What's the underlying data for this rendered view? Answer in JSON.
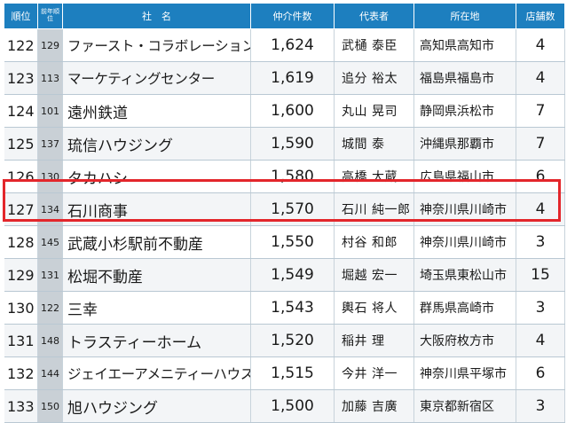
{
  "table": {
    "headers": {
      "rank": "順位",
      "prev_rank": "前年順位",
      "company": "社　名",
      "deals": "仲介件数",
      "representative": "代表者",
      "location": "所在地",
      "stores": "店舗数"
    },
    "rows": [
      {
        "rank": "122",
        "prev": "129",
        "company": "ファースト・コラボレーション",
        "deals": "1,624",
        "rep": "武樋 泰臣",
        "loc": "高知県高知市",
        "stores": "4"
      },
      {
        "rank": "123",
        "prev": "113",
        "company": "マーケティングセンター",
        "deals": "1,619",
        "rep": "追分 裕太",
        "loc": "福島県福島市",
        "stores": "4"
      },
      {
        "rank": "124",
        "prev": "101",
        "company": "遠州鉄道",
        "deals": "1,600",
        "rep": "丸山 晃司",
        "loc": "静岡県浜松市",
        "stores": "7"
      },
      {
        "rank": "125",
        "prev": "137",
        "company": "琉信ハウジング",
        "deals": "1,590",
        "rep": "城間 泰",
        "loc": "沖縄県那覇市",
        "stores": "7"
      },
      {
        "rank": "126",
        "prev": "130",
        "company": "タカハシ",
        "deals": "1,580",
        "rep": "高橋 大蔵",
        "loc": "広島県福山市",
        "stores": "6"
      },
      {
        "rank": "127",
        "prev": "134",
        "company": "石川商事",
        "deals": "1,570",
        "rep": "石川 純一郎",
        "loc": "神奈川県川崎市",
        "stores": "4"
      },
      {
        "rank": "128",
        "prev": "145",
        "company": "武蔵小杉駅前不動産",
        "deals": "1,550",
        "rep": "村谷 和郎",
        "loc": "神奈川県川崎市",
        "stores": "3"
      },
      {
        "rank": "129",
        "prev": "131",
        "company": "松堀不動産",
        "deals": "1,549",
        "rep": "堀越 宏一",
        "loc": "埼玉県東松山市",
        "stores": "15"
      },
      {
        "rank": "130",
        "prev": "122",
        "company": "三幸",
        "deals": "1,543",
        "rep": "輿石 将人",
        "loc": "群馬県高崎市",
        "stores": "3"
      },
      {
        "rank": "131",
        "prev": "148",
        "company": "トラスティーホーム",
        "deals": "1,520",
        "rep": "稲井 理",
        "loc": "大阪府枚方市",
        "stores": "4"
      },
      {
        "rank": "132",
        "prev": "144",
        "company": "ジェイエーアメニティーハウス",
        "deals": "1,515",
        "rep": "今井 洋一",
        "loc": "神奈川県平塚市",
        "stores": "6"
      },
      {
        "rank": "133",
        "prev": "150",
        "company": "旭ハウジング",
        "deals": "1,500",
        "rep": "加藤 吉廣",
        "loc": "東京都新宿区",
        "stores": "3"
      }
    ]
  }
}
